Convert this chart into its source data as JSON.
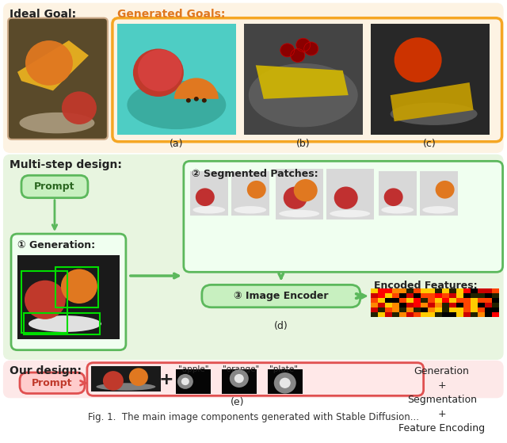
{
  "figsize": [
    6.4,
    5.59
  ],
  "dpi": 100,
  "bg_color": "#ffffff",
  "section1_bg": "#fdf3e3",
  "section2_bg": "#e8f5e0",
  "section3_bg": "#fde8e8",
  "orange_border": "#f5a623",
  "green_border": "#5cb85c",
  "red_border": "#e05050",
  "text_green": "#3a7d2c",
  "text_red": "#c0392b",
  "text_dark": "#222222",
  "labels": {
    "ideal_goal": "Ideal Goal:",
    "generated_goals": "Generated Goals:",
    "multi_step": "Multi-step design:",
    "prompt": "Prompt",
    "generation": "① Generation:",
    "segmented": "② Segmented Patches:",
    "image_encoder": "③ Image Encoder",
    "encoded": "Encoded Features:",
    "our_design": "Our design:",
    "gen_seg_feat": "Generation\n+\nSegmentation\n+\nFeature Encoding",
    "a": "(a)",
    "b": "(b)",
    "c": "(c)",
    "d": "(d)",
    "e": "(e)",
    "caption": "Fig. 1.  The main image components generated with Stable Diffusion..."
  }
}
